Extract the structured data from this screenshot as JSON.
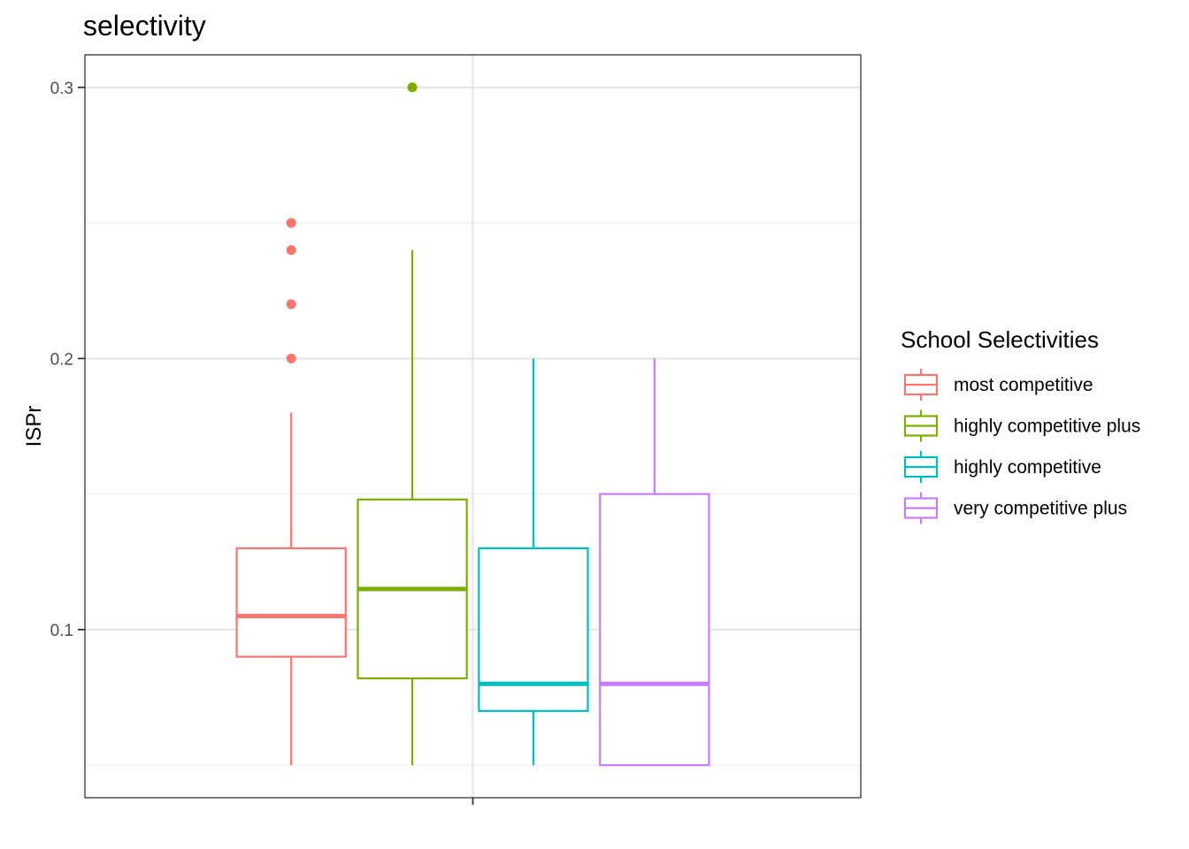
{
  "chart_data": {
    "type": "boxplot",
    "title": "selectivity",
    "xlabel": "",
    "ylabel": "ISPr",
    "ylim": [
      0.038,
      0.312
    ],
    "yticks": [
      "0.1",
      "0.2",
      "0.3"
    ],
    "ytick_values": [
      0.1,
      0.2,
      0.3
    ],
    "grid": true,
    "legend": {
      "title": "School Selectivities",
      "placement": "right"
    },
    "series": [
      {
        "name": "most competitive",
        "color": "#F8766D",
        "lower_whisker": 0.05,
        "q1": 0.09,
        "median": 0.105,
        "q3": 0.13,
        "upper_whisker": 0.18,
        "outliers": [
          0.2,
          0.22,
          0.24,
          0.25
        ]
      },
      {
        "name": "highly competitive plus",
        "color": "#7CAE00",
        "lower_whisker": 0.05,
        "q1": 0.082,
        "median": 0.115,
        "q3": 0.148,
        "upper_whisker": 0.24,
        "outliers": [
          0.3
        ]
      },
      {
        "name": "highly competitive",
        "color": "#00BFC4",
        "lower_whisker": 0.05,
        "q1": 0.07,
        "median": 0.08,
        "q3": 0.13,
        "upper_whisker": 0.2,
        "outliers": []
      },
      {
        "name": "very competitive plus",
        "color": "#C77CFF",
        "lower_whisker": 0.05,
        "q1": 0.05,
        "median": 0.08,
        "q3": 0.15,
        "upper_whisker": 0.2,
        "outliers": []
      }
    ]
  }
}
